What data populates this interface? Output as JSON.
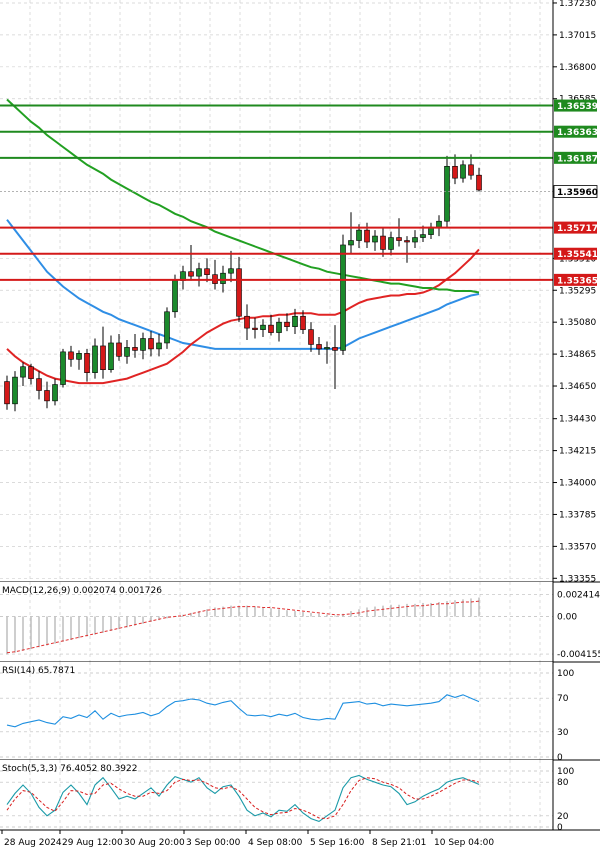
{
  "chart_data": [
    {
      "type": "candlestick",
      "panel": "price",
      "x_ticks": [
        "28 Aug 2024",
        "29 Aug 12:00",
        "30 Aug 20:00",
        "3 Sep 00:00",
        "4 Sep 08:00",
        "5 Sep 16:00",
        "8 Sep 21:01",
        "10 Sep 04:00"
      ],
      "y_ticks": [
        "1.37230",
        "1.37015",
        "1.36800",
        "1.36585",
        "1.35510",
        "1.35295",
        "1.35080",
        "1.34865",
        "1.34650",
        "1.34430",
        "1.34215",
        "1.34000",
        "1.33785",
        "1.33570",
        "1.33355"
      ],
      "ylim": [
        1.3333,
        1.3725
      ],
      "candles": [
        {
          "o": 1.3468,
          "h": 1.3472,
          "l": 1.3449,
          "c": 1.3453
        },
        {
          "o": 1.3453,
          "h": 1.3475,
          "l": 1.3448,
          "c": 1.3471
        },
        {
          "o": 1.3471,
          "h": 1.3481,
          "l": 1.3465,
          "c": 1.3478
        },
        {
          "o": 1.3478,
          "h": 1.348,
          "l": 1.3466,
          "c": 1.347
        },
        {
          "o": 1.347,
          "h": 1.3475,
          "l": 1.3456,
          "c": 1.3462
        },
        {
          "o": 1.3462,
          "h": 1.3468,
          "l": 1.345,
          "c": 1.3455
        },
        {
          "o": 1.3455,
          "h": 1.347,
          "l": 1.3452,
          "c": 1.3466
        },
        {
          "o": 1.3466,
          "h": 1.349,
          "l": 1.3464,
          "c": 1.3488
        },
        {
          "o": 1.3488,
          "h": 1.3492,
          "l": 1.3478,
          "c": 1.3483
        },
        {
          "o": 1.3483,
          "h": 1.3489,
          "l": 1.3476,
          "c": 1.3487
        },
        {
          "o": 1.3487,
          "h": 1.349,
          "l": 1.3468,
          "c": 1.3474
        },
        {
          "o": 1.3474,
          "h": 1.3497,
          "l": 1.347,
          "c": 1.3492
        },
        {
          "o": 1.3492,
          "h": 1.3505,
          "l": 1.347,
          "c": 1.3476
        },
        {
          "o": 1.3476,
          "h": 1.3499,
          "l": 1.3474,
          "c": 1.3494
        },
        {
          "o": 1.3494,
          "h": 1.35,
          "l": 1.3482,
          "c": 1.3485
        },
        {
          "o": 1.3485,
          "h": 1.3496,
          "l": 1.348,
          "c": 1.3491
        },
        {
          "o": 1.3491,
          "h": 1.35,
          "l": 1.3484,
          "c": 1.3489
        },
        {
          "o": 1.3489,
          "h": 1.3501,
          "l": 1.3483,
          "c": 1.3497
        },
        {
          "o": 1.3497,
          "h": 1.3502,
          "l": 1.3485,
          "c": 1.349
        },
        {
          "o": 1.349,
          "h": 1.35,
          "l": 1.3485,
          "c": 1.3494
        },
        {
          "o": 1.3494,
          "h": 1.3518,
          "l": 1.349,
          "c": 1.3515
        },
        {
          "o": 1.3515,
          "h": 1.354,
          "l": 1.3511,
          "c": 1.3536
        },
        {
          "o": 1.3536,
          "h": 1.3546,
          "l": 1.353,
          "c": 1.3542
        },
        {
          "o": 1.3542,
          "h": 1.356,
          "l": 1.3536,
          "c": 1.3539
        },
        {
          "o": 1.3539,
          "h": 1.3548,
          "l": 1.3532,
          "c": 1.3544
        },
        {
          "o": 1.3544,
          "h": 1.3551,
          "l": 1.3535,
          "c": 1.354
        },
        {
          "o": 1.354,
          "h": 1.355,
          "l": 1.353,
          "c": 1.3534
        },
        {
          "o": 1.3534,
          "h": 1.3546,
          "l": 1.3528,
          "c": 1.3541
        },
        {
          "o": 1.3541,
          "h": 1.3556,
          "l": 1.3535,
          "c": 1.3544
        },
        {
          "o": 1.3544,
          "h": 1.3552,
          "l": 1.3508,
          "c": 1.3512
        },
        {
          "o": 1.3512,
          "h": 1.352,
          "l": 1.3496,
          "c": 1.3504
        },
        {
          "o": 1.3504,
          "h": 1.3511,
          "l": 1.3497,
          "c": 1.3503
        },
        {
          "o": 1.3503,
          "h": 1.351,
          "l": 1.3498,
          "c": 1.3506
        },
        {
          "o": 1.3506,
          "h": 1.3513,
          "l": 1.3499,
          "c": 1.3501
        },
        {
          "o": 1.3501,
          "h": 1.3511,
          "l": 1.3495,
          "c": 1.3508
        },
        {
          "o": 1.3508,
          "h": 1.3514,
          "l": 1.3502,
          "c": 1.3505
        },
        {
          "o": 1.3505,
          "h": 1.3517,
          "l": 1.35,
          "c": 1.3512
        },
        {
          "o": 1.3512,
          "h": 1.3516,
          "l": 1.35,
          "c": 1.3503
        },
        {
          "o": 1.3503,
          "h": 1.3508,
          "l": 1.3488,
          "c": 1.3493
        },
        {
          "o": 1.3493,
          "h": 1.3498,
          "l": 1.3486,
          "c": 1.349
        },
        {
          "o": 1.349,
          "h": 1.3495,
          "l": 1.348,
          "c": 1.3491
        },
        {
          "o": 1.3491,
          "h": 1.3506,
          "l": 1.3463,
          "c": 1.3489
        },
        {
          "o": 1.3489,
          "h": 1.3567,
          "l": 1.3486,
          "c": 1.356
        },
        {
          "o": 1.356,
          "h": 1.3582,
          "l": 1.3554,
          "c": 1.3563
        },
        {
          "o": 1.3563,
          "h": 1.3574,
          "l": 1.3558,
          "c": 1.357
        },
        {
          "o": 1.357,
          "h": 1.3575,
          "l": 1.3558,
          "c": 1.3562
        },
        {
          "o": 1.3562,
          "h": 1.357,
          "l": 1.3556,
          "c": 1.3566
        },
        {
          "o": 1.3566,
          "h": 1.3572,
          "l": 1.3552,
          "c": 1.3557
        },
        {
          "o": 1.3557,
          "h": 1.3569,
          "l": 1.3553,
          "c": 1.3565
        },
        {
          "o": 1.3565,
          "h": 1.3578,
          "l": 1.3559,
          "c": 1.3563
        },
        {
          "o": 1.3563,
          "h": 1.3566,
          "l": 1.3548,
          "c": 1.3562
        },
        {
          "o": 1.3562,
          "h": 1.357,
          "l": 1.3558,
          "c": 1.3565
        },
        {
          "o": 1.3565,
          "h": 1.3573,
          "l": 1.3562,
          "c": 1.3567
        },
        {
          "o": 1.3567,
          "h": 1.3575,
          "l": 1.3564,
          "c": 1.3572
        },
        {
          "o": 1.3572,
          "h": 1.358,
          "l": 1.3566,
          "c": 1.3576
        },
        {
          "o": 1.3576,
          "h": 1.362,
          "l": 1.3572,
          "c": 1.3613
        },
        {
          "o": 1.3613,
          "h": 1.3621,
          "l": 1.3601,
          "c": 1.3605
        },
        {
          "o": 1.3605,
          "h": 1.3617,
          "l": 1.3602,
          "c": 1.3614
        },
        {
          "o": 1.3614,
          "h": 1.3621,
          "l": 1.3604,
          "c": 1.3607
        },
        {
          "o": 1.3607,
          "h": 1.3612,
          "l": 1.3596,
          "c": 1.3597
        }
      ],
      "lines": [
        {
          "color": "#2f8ee5",
          "values": [
            1.3577,
            1.357,
            1.3563,
            1.3556,
            1.3549,
            1.3542,
            1.3537,
            1.3532,
            1.3528,
            1.3524,
            1.3521,
            1.3518,
            1.3515,
            1.3513,
            1.351,
            1.3508,
            1.3506,
            1.3504,
            1.3502,
            1.35,
            1.3498,
            1.3496,
            1.3494,
            1.3493,
            1.3492,
            1.3491,
            1.349,
            1.349,
            1.349,
            1.349,
            1.349,
            1.349,
            1.349,
            1.349,
            1.349,
            1.349,
            1.349,
            1.349,
            1.349,
            1.349,
            1.349,
            1.349,
            1.3491,
            1.3494,
            1.3497,
            1.3499,
            1.3501,
            1.3503,
            1.3505,
            1.3507,
            1.3509,
            1.3511,
            1.3513,
            1.3515,
            1.3517,
            1.352,
            1.3522,
            1.3524,
            1.3526,
            1.3527
          ]
        },
        {
          "color": "#e02424",
          "values": [
            1.349,
            1.3485,
            1.3481,
            1.3478,
            1.3475,
            1.3472,
            1.347,
            1.3469,
            1.3468,
            1.3467,
            1.3467,
            1.3467,
            1.3467,
            1.3468,
            1.3469,
            1.347,
            1.3472,
            1.3474,
            1.3476,
            1.3478,
            1.348,
            1.3484,
            1.3488,
            1.3493,
            1.3497,
            1.3501,
            1.3504,
            1.3507,
            1.3509,
            1.351,
            1.3511,
            1.3511,
            1.3512,
            1.3512,
            1.3513,
            1.3513,
            1.3514,
            1.3514,
            1.3514,
            1.3513,
            1.3513,
            1.3513,
            1.3515,
            1.3518,
            1.3521,
            1.3523,
            1.3524,
            1.3525,
            1.3526,
            1.3526,
            1.3527,
            1.3527,
            1.3528,
            1.353,
            1.3533,
            1.3537,
            1.3541,
            1.3546,
            1.3551,
            1.3557
          ]
        },
        {
          "color": "#22a022",
          "values": [
            1.3658,
            1.3653,
            1.3648,
            1.3643,
            1.3639,
            1.3634,
            1.363,
            1.3626,
            1.3622,
            1.3618,
            1.3614,
            1.3611,
            1.3608,
            1.3604,
            1.3601,
            1.3598,
            1.3595,
            1.3592,
            1.3589,
            1.3587,
            1.3584,
            1.3581,
            1.3579,
            1.3576,
            1.3574,
            1.3572,
            1.3569,
            1.3567,
            1.3565,
            1.3563,
            1.3561,
            1.3559,
            1.3557,
            1.3555,
            1.3553,
            1.3551,
            1.3549,
            1.3547,
            1.3545,
            1.3544,
            1.3542,
            1.3541,
            1.354,
            1.3539,
            1.3538,
            1.3537,
            1.3536,
            1.3535,
            1.3534,
            1.3534,
            1.3533,
            1.3532,
            1.3531,
            1.3531,
            1.353,
            1.353,
            1.3529,
            1.3529,
            1.3529,
            1.3528
          ]
        }
      ],
      "hlines": [
        {
          "value": 1.36539,
          "label": "1.36539",
          "color": "#1f8a1f"
        },
        {
          "value": 1.36363,
          "label": "1.36363",
          "color": "#1f8a1f"
        },
        {
          "value": 1.36187,
          "label": "1.36187",
          "color": "#1f8a1f"
        },
        {
          "value": 1.35717,
          "label": "1.35717",
          "color": "#d41919"
        },
        {
          "value": 1.35541,
          "label": "1.35541",
          "color": "#d41919"
        },
        {
          "value": 1.35365,
          "label": "1.35365",
          "color": "#d41919"
        }
      ],
      "current_price": {
        "value": 1.3596,
        "label": "1.35960"
      },
      "bull_color": "#1b8a2c",
      "bear_color": "#d41919"
    },
    {
      "type": "bar",
      "panel": "macd",
      "title": "MACD(12,26,9) 0.002074 0.001726",
      "y_ticks": [
        "0.002414",
        "0.00",
        "-0.004155"
      ],
      "ylim": [
        -0.0047,
        0.0026
      ],
      "values": [
        -0.0042,
        -0.004,
        -0.0038,
        -0.0036,
        -0.0034,
        -0.0032,
        -0.003,
        -0.0028,
        -0.0026,
        -0.0024,
        -0.0022,
        -0.002,
        -0.0018,
        -0.0016,
        -0.0014,
        -0.0012,
        -0.001,
        -0.0008,
        -0.0006,
        -0.0004,
        -0.0002,
        0.0,
        0.0002,
        0.0004,
        0.0006,
        0.0008,
        0.001,
        0.0011,
        0.0012,
        0.0012,
        0.0012,
        0.0011,
        0.001,
        0.0009,
        0.0008,
        0.0007,
        0.0006,
        0.0005,
        0.0004,
        0.0003,
        0.0002,
        0.0001,
        0.0003,
        0.0006,
        0.0008,
        0.001,
        0.0011,
        0.0012,
        0.0013,
        0.0013,
        0.0014,
        0.0014,
        0.0015,
        0.0015,
        0.0016,
        0.0017,
        0.0018,
        0.0019,
        0.002,
        0.0021
      ],
      "signal": [
        -0.004,
        -0.0039,
        -0.0037,
        -0.0035,
        -0.0033,
        -0.0031,
        -0.0029,
        -0.0027,
        -0.0025,
        -0.0023,
        -0.0021,
        -0.0019,
        -0.0017,
        -0.0015,
        -0.0013,
        -0.0011,
        -0.0009,
        -0.0007,
        -0.0005,
        -0.0003,
        -0.0001,
        0.0,
        0.0001,
        0.0003,
        0.0005,
        0.0007,
        0.0008,
        0.0009,
        0.001,
        0.0011,
        0.0011,
        0.0011,
        0.001,
        0.001,
        0.0009,
        0.0008,
        0.0007,
        0.0006,
        0.0005,
        0.0004,
        0.0003,
        0.0002,
        0.0002,
        0.0003,
        0.0004,
        0.0006,
        0.0007,
        0.0008,
        0.0009,
        0.001,
        0.0011,
        0.0012,
        0.0012,
        0.0013,
        0.0014,
        0.0014,
        0.0015,
        0.0016,
        0.0016,
        0.0017
      ]
    },
    {
      "type": "line",
      "panel": "rsi",
      "title": "RSI(14) 65.7871",
      "y_ticks": [
        "100",
        "70",
        "30",
        "0"
      ],
      "ylim": [
        0,
        100
      ],
      "values": [
        38,
        36,
        40,
        42,
        44,
        41,
        39,
        48,
        46,
        50,
        47,
        55,
        45,
        52,
        48,
        50,
        51,
        53,
        49,
        52,
        60,
        66,
        67,
        69,
        68,
        64,
        62,
        65,
        67,
        58,
        50,
        49,
        50,
        48,
        51,
        49,
        52,
        47,
        45,
        44,
        46,
        45,
        64,
        65,
        66,
        63,
        64,
        61,
        63,
        62,
        61,
        62,
        63,
        64,
        66,
        74,
        71,
        74,
        70,
        66
      ]
    },
    {
      "type": "line",
      "panel": "stoch",
      "title": "Stoch(5,3,3) 76.4052 80.3922",
      "y_ticks": [
        "100",
        "80",
        "20",
        "0"
      ],
      "ylim": [
        0,
        100
      ],
      "series": [
        {
          "color": "#1a9aa8",
          "values": [
            40,
            60,
            75,
            60,
            35,
            20,
            30,
            62,
            75,
            60,
            40,
            75,
            88,
            70,
            50,
            55,
            50,
            60,
            70,
            55,
            75,
            90,
            85,
            80,
            88,
            70,
            60,
            72,
            75,
            55,
            30,
            20,
            25,
            18,
            30,
            28,
            40,
            25,
            15,
            10,
            20,
            30,
            70,
            88,
            92,
            85,
            80,
            75,
            72,
            60,
            40,
            45,
            55,
            62,
            68,
            80,
            85,
            88,
            82,
            76
          ]
        },
        {
          "color": "#d91e1e",
          "values": [
            30,
            50,
            65,
            62,
            48,
            35,
            28,
            45,
            65,
            64,
            58,
            60,
            75,
            78,
            68,
            60,
            55,
            55,
            62,
            60,
            65,
            80,
            85,
            83,
            84,
            78,
            70,
            68,
            72,
            65,
            50,
            35,
            27,
            22,
            25,
            26,
            33,
            30,
            24,
            16,
            15,
            20,
            40,
            65,
            83,
            88,
            86,
            80,
            76,
            70,
            58,
            50,
            50,
            55,
            62,
            70,
            78,
            84,
            84,
            80
          ]
        }
      ]
    }
  ]
}
